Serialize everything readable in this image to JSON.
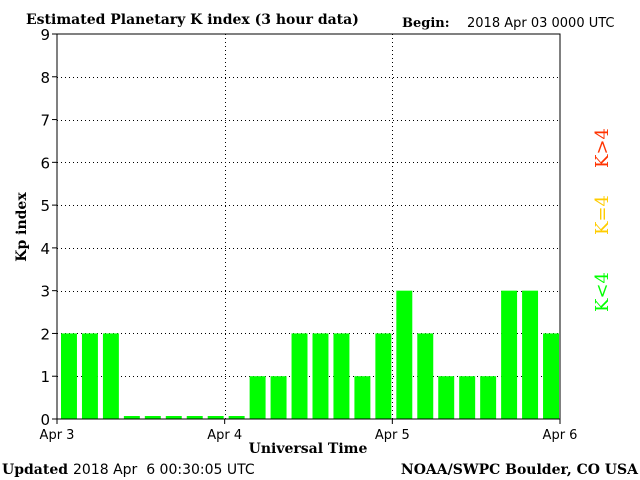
{
  "header": {
    "title": "Estimated Planetary K index (3 hour data)",
    "begin_label": "Begin:",
    "begin_value": "2018 Apr 03 0000 UTC"
  },
  "footer": {
    "updated_label": "Updated",
    "updated_value": "2018 Apr  6 00:30:05 UTC",
    "credit": "NOAA/SWPC Boulder, CO USA"
  },
  "legend": {
    "items": [
      {
        "label": "K<4",
        "color": "#00ff00"
      },
      {
        "label": "K=4",
        "color": "#ffcc00"
      },
      {
        "label": "K>4",
        "color": "#ff3300"
      }
    ]
  },
  "chart_data": {
    "type": "bar",
    "title": "Estimated Planetary K index (3 hour data)",
    "xlabel": "Universal Time",
    "ylabel": "Kp index",
    "ylim": [
      0,
      9
    ],
    "yticks": [
      0,
      1,
      2,
      3,
      4,
      5,
      6,
      7,
      8,
      9
    ],
    "xlim_bins": 24,
    "x_tick_labels": [
      {
        "label": "Apr 3",
        "bin": 0
      },
      {
        "label": "Apr 4",
        "bin": 8
      },
      {
        "label": "Apr 5",
        "bin": 16
      },
      {
        "label": "Apr 6",
        "bin": 24
      }
    ],
    "grid": true,
    "bar_color": "#00ff00",
    "series": [
      {
        "values": [
          2,
          2,
          2,
          0,
          0,
          0,
          0,
          0,
          0,
          1,
          1,
          2,
          2,
          2,
          1,
          2,
          3,
          2,
          1,
          1,
          1,
          3,
          3,
          2
        ]
      }
    ]
  }
}
